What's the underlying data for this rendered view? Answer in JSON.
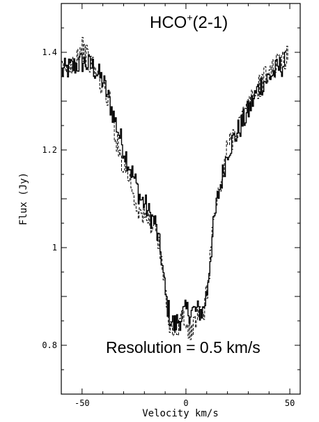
{
  "chart_data": {
    "type": "line",
    "title": "",
    "xlabel": "Velocity km/s",
    "ylabel": "Flux (Jy)",
    "xlim": [
      -60,
      55
    ],
    "ylim": [
      0.7,
      1.5
    ],
    "xticks": [
      -50,
      0,
      50
    ],
    "xtick_labels": [
      "-50",
      "0",
      "50"
    ],
    "yticks": [
      0.8,
      1.0,
      1.2,
      1.4
    ],
    "ytick_labels": [
      "0.8",
      "1",
      "1.2",
      "1.4"
    ],
    "grid": false,
    "annotations": [
      {
        "id": "line",
        "main": "HCO",
        "sup": "+",
        "rest": "(2-1)"
      },
      {
        "id": "resolution",
        "text": "Resolution = 0.5 km/s"
      }
    ],
    "series": [
      {
        "style": "solid",
        "color": "#000000",
        "x": [
          -60,
          -55,
          -50,
          -45,
          -40,
          -35,
          -30,
          -25,
          -22,
          -20,
          -18,
          -15,
          -12,
          -10,
          -8,
          -6,
          -4,
          -2,
          0,
          2,
          4,
          6,
          8,
          10,
          11,
          12,
          13,
          15,
          18,
          20,
          25,
          30,
          35,
          40,
          45,
          48
        ],
        "y": [
          1.36,
          1.37,
          1.38,
          1.37,
          1.34,
          1.27,
          1.2,
          1.14,
          1.1,
          1.09,
          1.07,
          1.05,
          0.98,
          0.9,
          0.86,
          0.84,
          0.85,
          0.86,
          0.87,
          0.87,
          0.87,
          0.87,
          0.87,
          0.91,
          0.96,
          1.0,
          1.04,
          1.1,
          1.16,
          1.2,
          1.24,
          1.28,
          1.33,
          1.35,
          1.37,
          1.38
        ]
      },
      {
        "style": "dashed",
        "color": "#000000",
        "x": [
          -60,
          -55,
          -52,
          -50,
          -47,
          -45,
          -40,
          -37,
          -35,
          -32,
          -30,
          -27,
          -25,
          -22,
          -20,
          -17,
          -15,
          -12,
          -10,
          -8,
          -6,
          -4,
          -2,
          0,
          2,
          4,
          6,
          8,
          10,
          11,
          12,
          13,
          15,
          18,
          20,
          25,
          30,
          35,
          40,
          45,
          49
        ],
        "y": [
          1.36,
          1.38,
          1.4,
          1.41,
          1.38,
          1.37,
          1.33,
          1.3,
          1.25,
          1.19,
          1.17,
          1.14,
          1.1,
          1.07,
          1.06,
          1.05,
          1.05,
          0.97,
          0.9,
          0.85,
          0.83,
          0.84,
          0.86,
          0.84,
          0.82,
          0.85,
          0.86,
          0.86,
          0.91,
          0.96,
          1.01,
          1.05,
          1.1,
          1.16,
          1.21,
          1.25,
          1.29,
          1.33,
          1.36,
          1.38,
          1.39
        ]
      }
    ]
  }
}
